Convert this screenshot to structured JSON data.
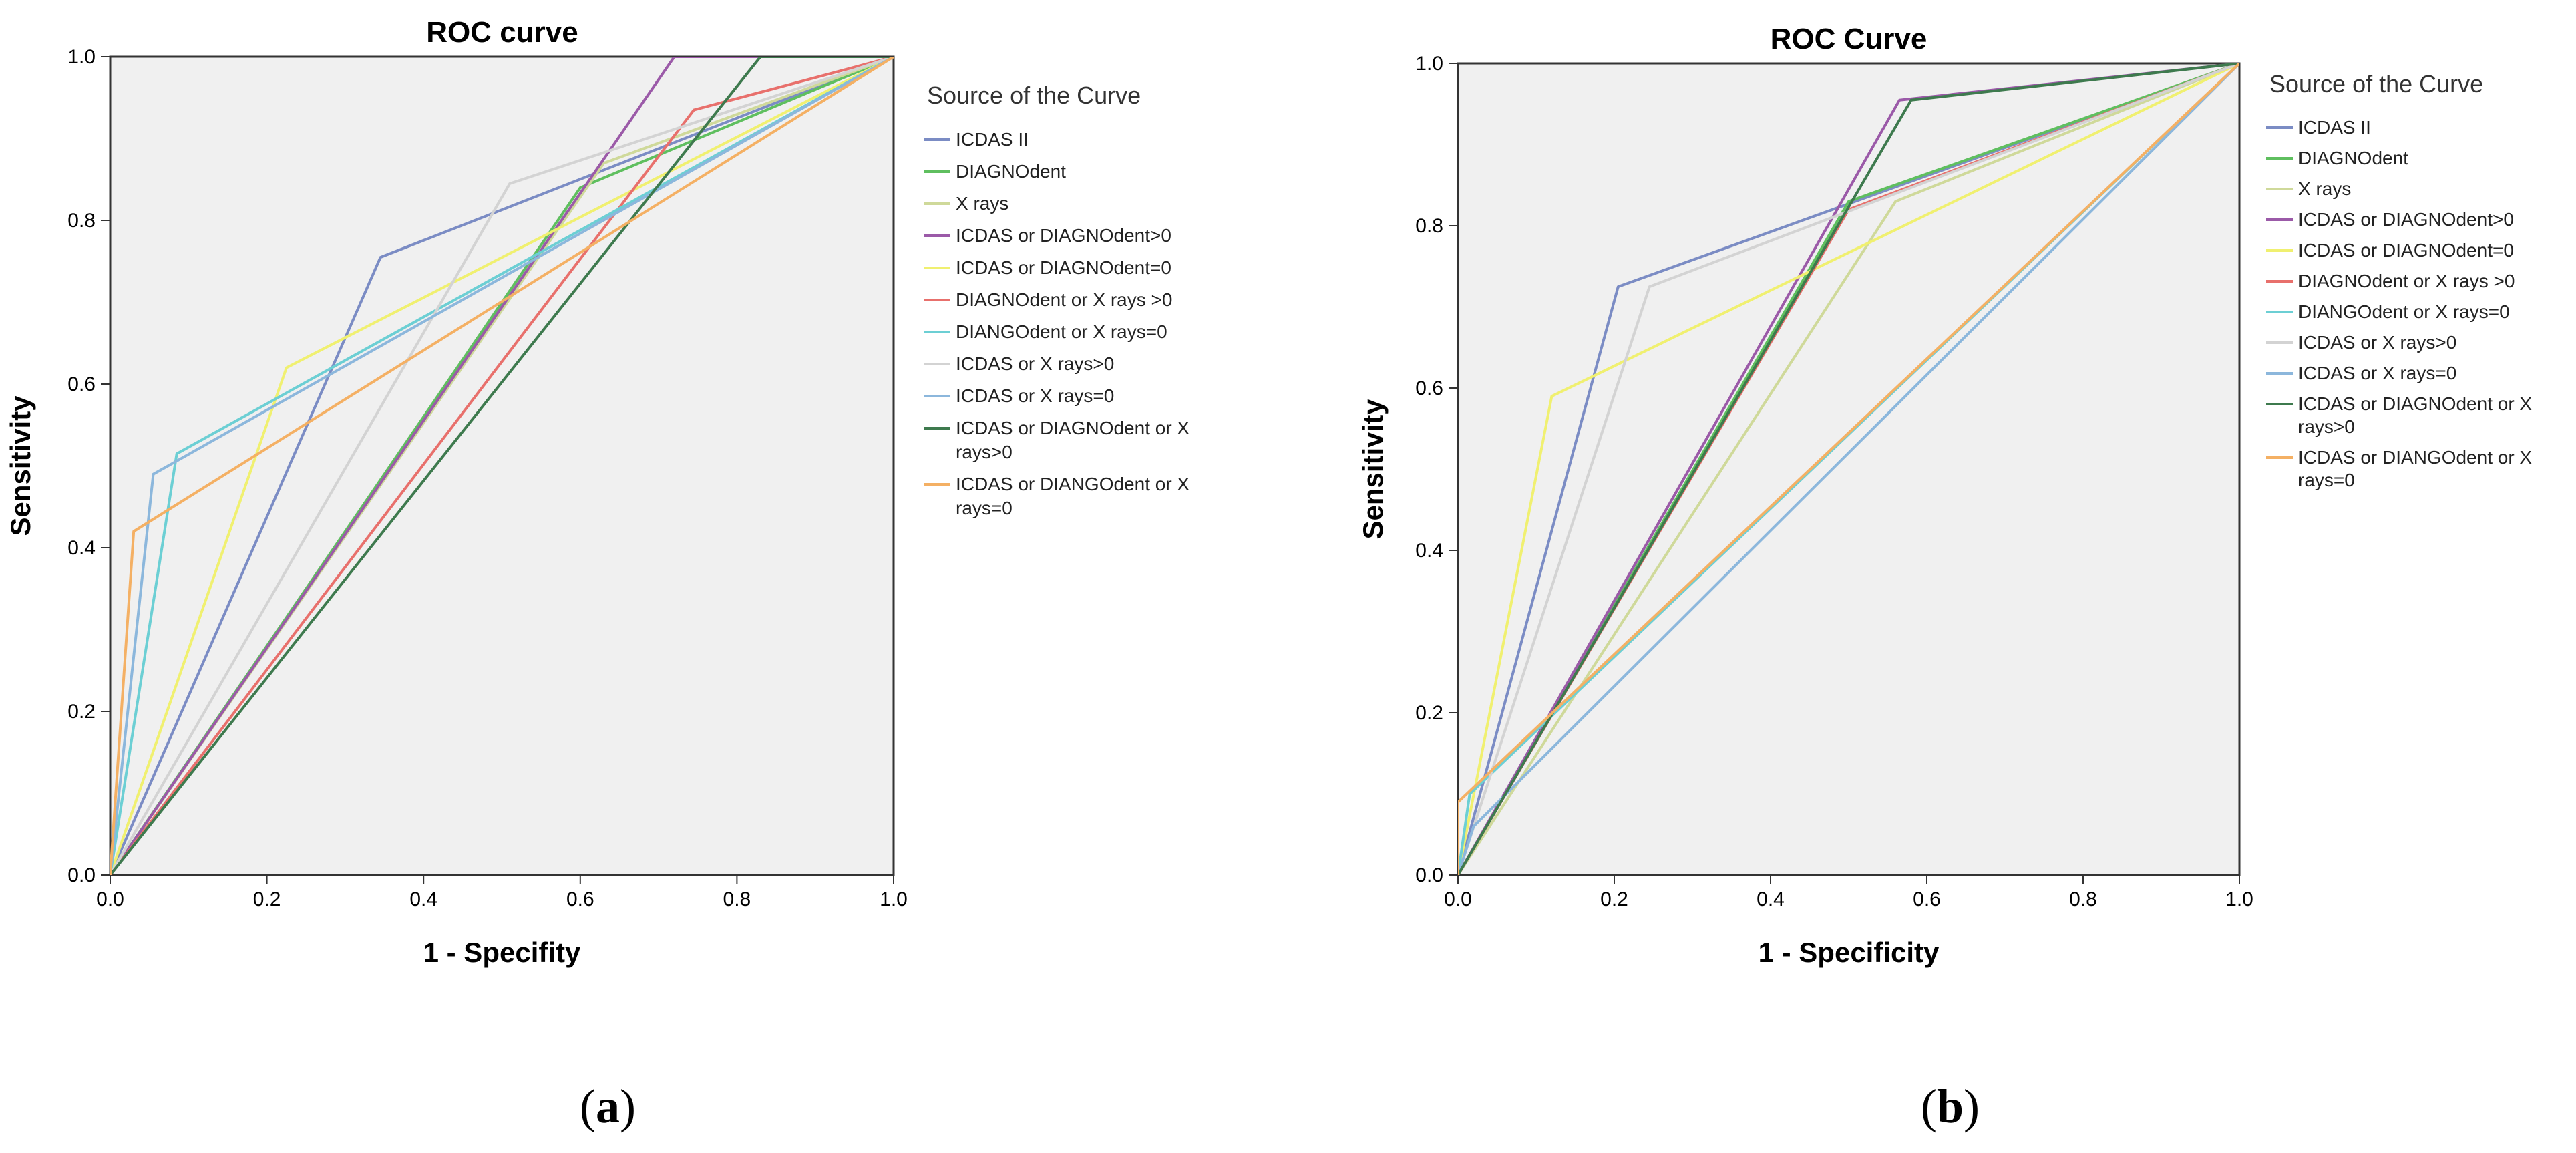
{
  "panels": [
    {
      "label_open": "(",
      "label_letter": "a",
      "label_close": ")"
    },
    {
      "label_open": "(",
      "label_letter": "b",
      "label_close": ")"
    }
  ],
  "chart_data": [
    {
      "type": "line",
      "title": "ROC curve",
      "xlabel": "1 - Specifity",
      "ylabel": "Sensitivity",
      "xlim": [
        0,
        1
      ],
      "ylim": [
        0,
        1
      ],
      "xticks": [
        "0.0",
        "0.2",
        "0.4",
        "0.6",
        "0.8",
        "1.0"
      ],
      "yticks": [
        "0.0",
        "0.2",
        "0.4",
        "0.6",
        "0.8",
        "1.0"
      ],
      "legend_title": "Source of the Curve",
      "legend_position": "right",
      "series": [
        {
          "name": "ICDAS II",
          "color": "#7b8cc4",
          "x": [
            0,
            0.345,
            1
          ],
          "y": [
            0,
            0.755,
            1
          ]
        },
        {
          "name": "DIAGNOdent",
          "color": "#5fbf5f",
          "x": [
            0,
            0.6,
            1
          ],
          "y": [
            0,
            0.84,
            1
          ]
        },
        {
          "name": "X rays",
          "color": "#cfd99a",
          "x": [
            0,
            0.63,
            1
          ],
          "y": [
            0,
            0.87,
            1
          ]
        },
        {
          "name": "ICDAS or DIAGNOdent>0",
          "color": "#9b5aa8",
          "x": [
            0,
            0.72,
            1
          ],
          "y": [
            0,
            1,
            1
          ]
        },
        {
          "name": "ICDAS or DIAGNOdent=0",
          "color": "#f0f070",
          "x": [
            0,
            0.225,
            1
          ],
          "y": [
            0,
            0.62,
            1
          ]
        },
        {
          "name": "DIAGNOdent or X rays >0",
          "color": "#e8706c",
          "x": [
            0,
            0.745,
            1
          ],
          "y": [
            0,
            0.935,
            1
          ]
        },
        {
          "name": "DIANGOdent or X rays=0",
          "color": "#6ccfd4",
          "x": [
            0,
            0.085,
            1
          ],
          "y": [
            0,
            0.515,
            1
          ]
        },
        {
          "name": "ICDAS or X rays>0",
          "color": "#d3d3d3",
          "x": [
            0,
            0.51,
            1
          ],
          "y": [
            0,
            0.845,
            1
          ]
        },
        {
          "name": "ICDAS or X rays=0",
          "color": "#8cb7dc",
          "x": [
            0,
            0.055,
            1
          ],
          "y": [
            0,
            0.49,
            1
          ]
        },
        {
          "name": "ICDAS or DIAGNOdent or X rays>0",
          "color": "#3e7a4e",
          "x": [
            0,
            0.83,
            1
          ],
          "y": [
            0,
            1,
            1
          ]
        },
        {
          "name": "ICDAS or DIANGOdent or X rays=0",
          "color": "#f4b064",
          "x": [
            0,
            0.03,
            1
          ],
          "y": [
            0,
            0.42,
            1
          ]
        }
      ]
    },
    {
      "type": "line",
      "title": "ROC Curve",
      "xlabel": "1 - Specificity",
      "ylabel": "Sensitivity",
      "xlim": [
        0,
        1
      ],
      "ylim": [
        0,
        1
      ],
      "xticks": [
        "0.0",
        "0.2",
        "0.4",
        "0.6",
        "0.8",
        "1.0"
      ],
      "yticks": [
        "0.0",
        "0.2",
        "0.4",
        "0.6",
        "0.8",
        "1.0"
      ],
      "legend_title": "Source of the Curve",
      "legend_position": "right",
      "series": [
        {
          "name": "ICDAS II",
          "color": "#7b8cc4",
          "x": [
            0,
            0.205,
            1
          ],
          "y": [
            0,
            0.725,
            1
          ]
        },
        {
          "name": "DIAGNOdent",
          "color": "#5fbf5f",
          "x": [
            0,
            0.5,
            1
          ],
          "y": [
            0,
            0.83,
            1
          ]
        },
        {
          "name": "X rays",
          "color": "#cfd99a",
          "x": [
            0,
            0.56,
            1
          ],
          "y": [
            0,
            0.83,
            1
          ]
        },
        {
          "name": "ICDAS or DIAGNOdent>0",
          "color": "#9b5aa8",
          "x": [
            0,
            0.565,
            1
          ],
          "y": [
            0,
            0.955,
            1
          ]
        },
        {
          "name": "ICDAS or DIAGNOdent=0",
          "color": "#f0f070",
          "x": [
            0,
            0.12,
            1
          ],
          "y": [
            0,
            0.59,
            1
          ]
        },
        {
          "name": "DIAGNOdent or X rays >0",
          "color": "#e8706c",
          "x": [
            0,
            0.5,
            1
          ],
          "y": [
            0,
            0.82,
            1
          ]
        },
        {
          "name": "DIANGOdent or X rays=0",
          "color": "#6ccfd4",
          "x": [
            0,
            0.015,
            1
          ],
          "y": [
            0,
            0.1,
            1
          ]
        },
        {
          "name": "ICDAS or X rays>0",
          "color": "#d3d3d3",
          "x": [
            0,
            0.245,
            1
          ],
          "y": [
            0,
            0.725,
            1
          ]
        },
        {
          "name": "ICDAS or X rays=0",
          "color": "#8cb7dc",
          "x": [
            0,
            0.02,
            1
          ],
          "y": [
            0,
            0.06,
            1
          ]
        },
        {
          "name": "ICDAS or DIAGNOdent or X rays>0",
          "color": "#3e7a4e",
          "x": [
            0,
            0.58,
            1
          ],
          "y": [
            0,
            0.955,
            1
          ]
        },
        {
          "name": "ICDAS or DIANGOdent or X rays=0",
          "color": "#f4b064",
          "x": [
            0,
            0,
            1
          ],
          "y": [
            0,
            0.09,
            1
          ]
        }
      ]
    }
  ]
}
